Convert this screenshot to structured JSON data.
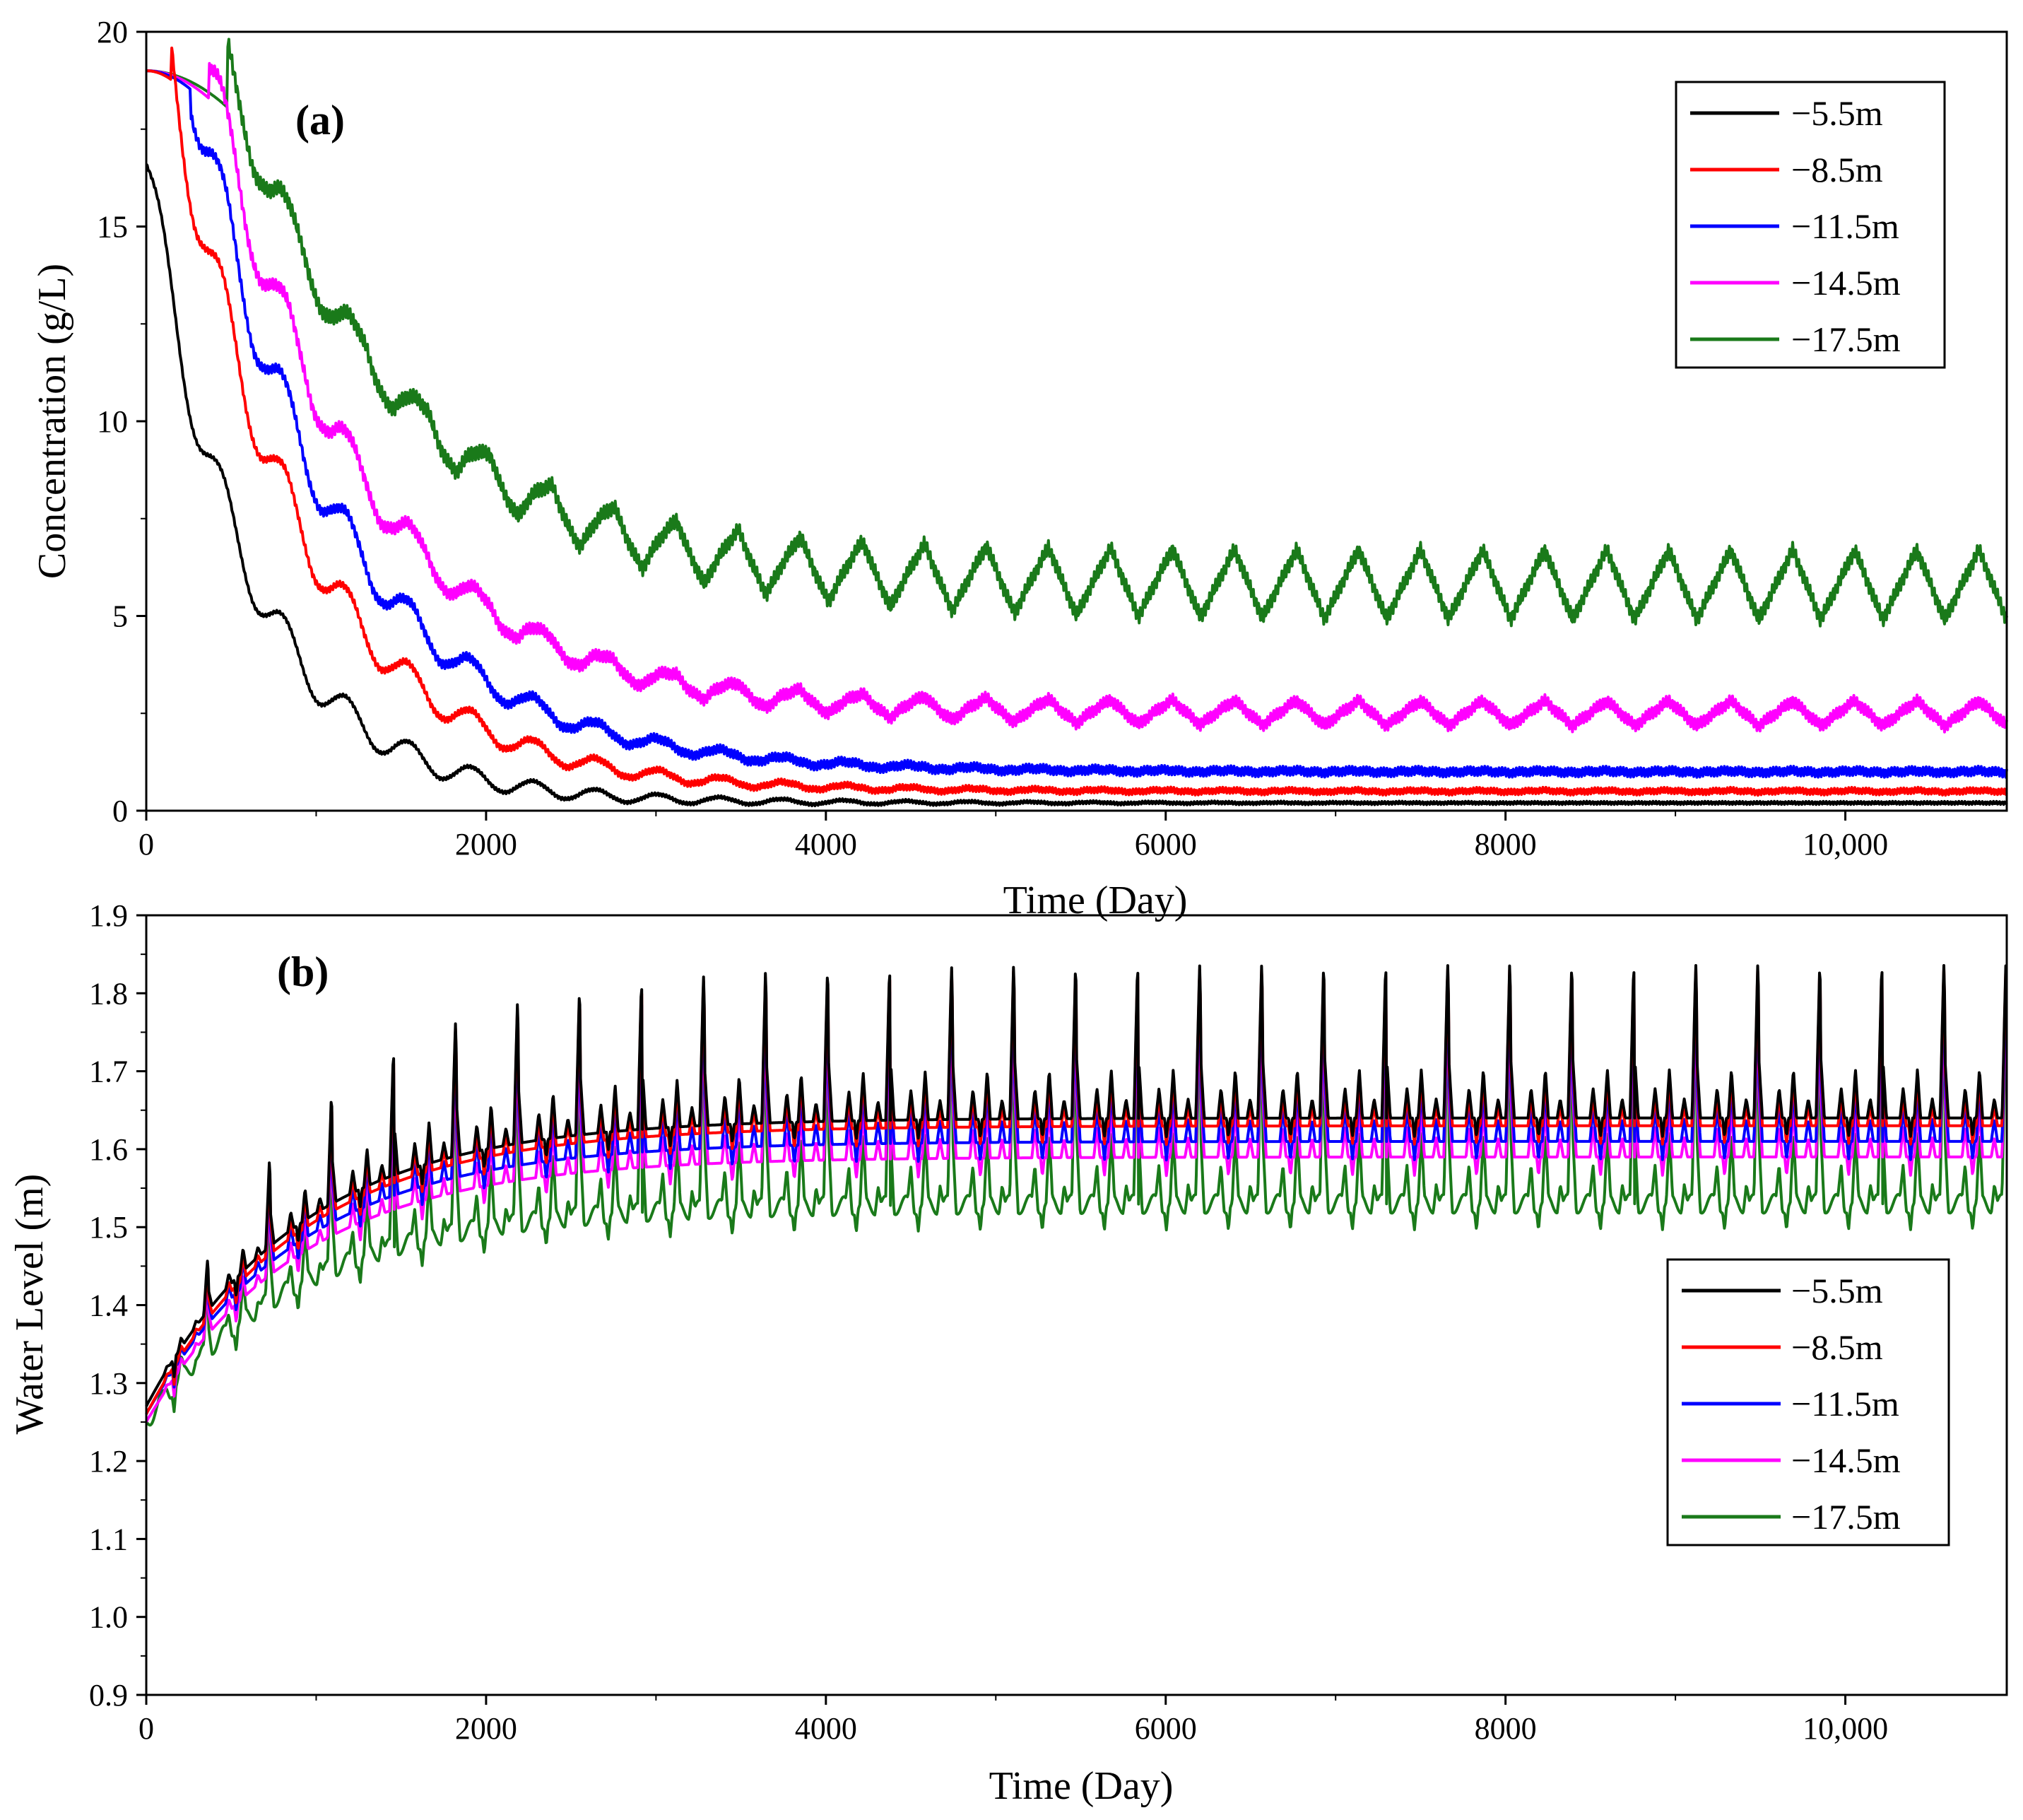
{
  "chart_data": [
    {
      "panel_label": "(a)",
      "type": "line",
      "xlabel": "Time (Day)",
      "ylabel": "Concentration (g/L)",
      "xlim": [
        0,
        10950
      ],
      "ylim": [
        0,
        20
      ],
      "xticks": [
        0,
        2000,
        4000,
        6000,
        8000,
        10000
      ],
      "xtick_labels": [
        "0",
        "2000",
        "4000",
        "6000",
        "8000",
        "10,000"
      ],
      "yticks": [
        0,
        5,
        10,
        15,
        20
      ],
      "ytick_labels": [
        "0",
        "5",
        "10",
        "15",
        "20"
      ],
      "grid": false,
      "legend_position": "top-right",
      "period_days": 365,
      "series": [
        {
          "name": "−5.5m",
          "color": "#000000",
          "initial": 16.6,
          "final": 0.2,
          "decay_scale": 600,
          "final_amplitude": 0.0
        },
        {
          "name": "−8.5m",
          "color": "#ff0000",
          "initial": 19.0,
          "final": 0.5,
          "decay_scale": 750,
          "final_amplitude": 0.05
        },
        {
          "name": "−11.5m",
          "color": "#0000ff",
          "initial": 19.0,
          "final": 1.0,
          "decay_scale": 850,
          "final_amplitude": 0.05
        },
        {
          "name": "−14.5m",
          "color": "#ff00ff",
          "initial": 19.0,
          "final": 2.5,
          "decay_scale": 900,
          "final_amplitude": 0.65
        },
        {
          "name": "−17.5m",
          "color": "#1a7a1a",
          "initial": 19.0,
          "final": 5.8,
          "decay_scale": 1000,
          "final_amplitude": 1.8
        }
      ]
    },
    {
      "panel_label": "(b)",
      "type": "line",
      "xlabel": "Time (Day)",
      "ylabel": "Water Level (m)",
      "xlim": [
        0,
        10950
      ],
      "ylim": [
        0.9,
        1.9
      ],
      "xticks": [
        0,
        2000,
        4000,
        6000,
        8000,
        10000
      ],
      "xtick_labels": [
        "0",
        "2000",
        "4000",
        "6000",
        "8000",
        "10,000"
      ],
      "yticks": [
        0.9,
        1.0,
        1.1,
        1.2,
        1.3,
        1.4,
        1.5,
        1.6,
        1.7,
        1.8,
        1.9
      ],
      "ytick_labels": [
        "0.9",
        "1.0",
        "1.1",
        "1.2",
        "1.3",
        "1.4",
        "1.5",
        "1.6",
        "1.7",
        "1.8",
        "1.9"
      ],
      "grid": false,
      "legend_position": "right",
      "period_days": 365,
      "series": [
        {
          "name": "−5.5m",
          "color": "#000000",
          "start": 1.27,
          "steady_min": 1.64,
          "steady_mid_peak": 1.71,
          "steady_max": 1.84
        },
        {
          "name": "−8.5m",
          "color": "#ff0000",
          "start": 1.26,
          "steady_min": 1.63,
          "steady_mid_peak": 1.7,
          "steady_max": 1.835
        },
        {
          "name": "−11.5m",
          "color": "#0000ff",
          "start": 1.26,
          "steady_min": 1.61,
          "steady_mid_peak": 1.69,
          "steady_max": 1.82
        },
        {
          "name": "−14.5m",
          "color": "#ff00ff",
          "start": 1.25,
          "steady_min": 1.59,
          "steady_mid_peak": 1.66,
          "steady_max": 1.8
        },
        {
          "name": "−17.5m",
          "color": "#1a7a1a",
          "start": 1.25,
          "steady_min": 1.53,
          "steady_mid_peak": 1.62,
          "steady_max": 1.765
        }
      ]
    }
  ]
}
